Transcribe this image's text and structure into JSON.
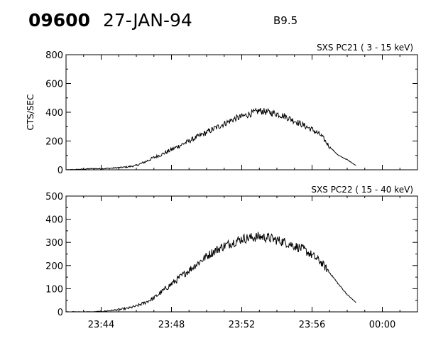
{
  "header": {
    "event_id": "09600",
    "date": "27-JAN-94",
    "goes_class": "B9.5"
  },
  "chart_data": [
    {
      "type": "line",
      "title": "SXS PC21   (  3 - 15 keV)",
      "ylabel": "CTS/SEC",
      "xlabel": "",
      "ylim": [
        0,
        800
      ],
      "yticks": [
        0,
        200,
        400,
        600,
        800
      ],
      "xlim": [
        "23:42:00",
        "00:02:00"
      ],
      "xticks": [
        "23:44",
        "23:48",
        "23:52",
        "23:56",
        "00:00"
      ],
      "grid": false,
      "series": [
        {
          "x": [
            "23:42:00",
            "23:42:30",
            "23:43:00",
            "23:43:30",
            "23:44:00",
            "23:44:30",
            "23:45:00",
            "23:45:30",
            "23:46:00",
            "23:46:30",
            "23:47:00",
            "23:47:30",
            "23:48:00",
            "23:48:30",
            "23:49:00",
            "23:49:30",
            "23:50:00",
            "23:50:30",
            "23:51:00",
            "23:51:30",
            "23:52:00",
            "23:52:30",
            "23:53:00",
            "23:53:30",
            "23:54:00",
            "23:54:30",
            "23:55:00",
            "23:55:30",
            "23:56:00",
            "23:56:30",
            "23:57:00",
            "23:57:30",
            "23:58:00",
            "23:58:30"
          ],
          "values": [
            0,
            2,
            5,
            8,
            8,
            10,
            15,
            20,
            30,
            55,
            85,
            110,
            140,
            170,
            200,
            230,
            260,
            290,
            320,
            350,
            370,
            390,
            410,
            400,
            390,
            370,
            340,
            310,
            280,
            240,
            160,
            100,
            70,
            30
          ]
        }
      ]
    },
    {
      "type": "line",
      "title": "SXS PC22   ( 15 - 40 keV)",
      "ylabel": "",
      "xlabel": "",
      "ylim": [
        0,
        500
      ],
      "yticks": [
        0,
        100,
        200,
        300,
        400,
        500
      ],
      "xlim": [
        "23:42:00",
        "00:02:00"
      ],
      "xticks": [
        "23:44",
        "23:48",
        "23:52",
        "23:56",
        "00:00"
      ],
      "grid": false,
      "series": [
        {
          "x": [
            "23:42:00",
            "23:42:30",
            "23:43:00",
            "23:43:30",
            "23:44:00",
            "23:44:30",
            "23:45:00",
            "23:45:30",
            "23:46:00",
            "23:46:30",
            "23:47:00",
            "23:47:30",
            "23:48:00",
            "23:48:30",
            "23:49:00",
            "23:49:30",
            "23:50:00",
            "23:50:30",
            "23:51:00",
            "23:51:30",
            "23:52:00",
            "23:52:30",
            "23:53:00",
            "23:53:30",
            "23:54:00",
            "23:54:30",
            "23:55:00",
            "23:55:30",
            "23:56:00",
            "23:56:30",
            "23:57:00",
            "23:57:30",
            "23:58:00",
            "23:58:30"
          ],
          "values": [
            0,
            0,
            0,
            0,
            2,
            5,
            10,
            15,
            25,
            40,
            60,
            90,
            120,
            150,
            180,
            210,
            240,
            265,
            285,
            300,
            315,
            320,
            325,
            320,
            310,
            300,
            285,
            270,
            245,
            215,
            170,
            120,
            75,
            40
          ]
        }
      ]
    }
  ]
}
